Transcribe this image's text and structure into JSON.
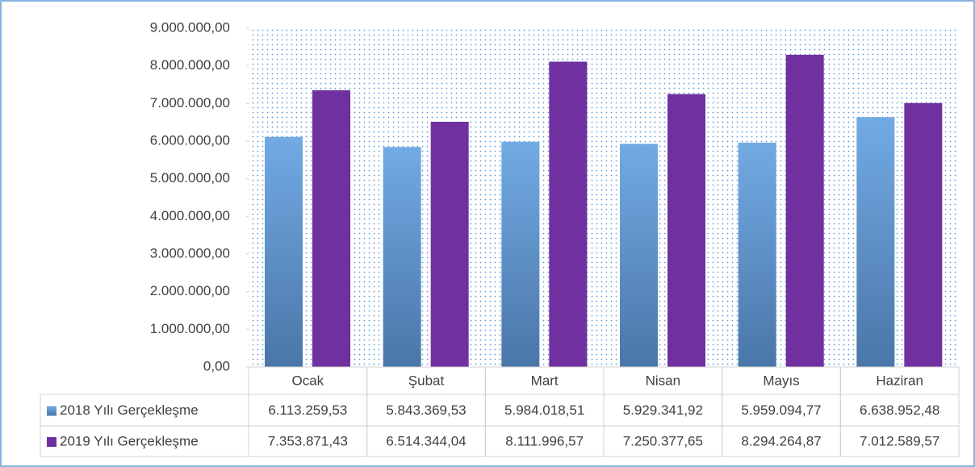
{
  "chart_data": {
    "type": "bar",
    "categories": [
      "Ocak",
      "Şubat",
      "Mart",
      "Nisan",
      "Mayıs",
      "Haziran"
    ],
    "series": [
      {
        "name": "2018 Yılı Gerçekleşme",
        "color": "#5b9bd5",
        "values": [
          6113259.53,
          5843369.53,
          5984018.51,
          5929341.92,
          5959094.77,
          6638952.48
        ],
        "value_labels": [
          "6.113.259,53",
          "5.843.369,53",
          "5.984.018,51",
          "5.929.341,92",
          "5.959.094,77",
          "6.638.952,48"
        ]
      },
      {
        "name": "2019 Yılı Gerçekleşme",
        "color": "#7030a0",
        "values": [
          7353871.43,
          6514344.04,
          8111996.57,
          7250377.65,
          8294264.87,
          7012589.57
        ],
        "value_labels": [
          "7.353.871,43",
          "6.514.344,04",
          "8.111.996,57",
          "7.250.377,65",
          "8.294.264,87",
          "7.012.589,57"
        ]
      }
    ],
    "ylim": [
      0,
      9000000
    ],
    "yticks": [
      {
        "value": 0,
        "label": "0,00"
      },
      {
        "value": 1000000,
        "label": "1.000.000,00"
      },
      {
        "value": 2000000,
        "label": "2.000.000,00"
      },
      {
        "value": 3000000,
        "label": "3.000.000,00"
      },
      {
        "value": 4000000,
        "label": "4.000.000,00"
      },
      {
        "value": 5000000,
        "label": "5.000.000,00"
      },
      {
        "value": 6000000,
        "label": "6.000.000,00"
      },
      {
        "value": 7000000,
        "label": "7.000.000,00"
      },
      {
        "value": 8000000,
        "label": "8.000.000,00"
      },
      {
        "value": 9000000,
        "label": "9.000.000,00"
      }
    ],
    "data_table": true
  }
}
